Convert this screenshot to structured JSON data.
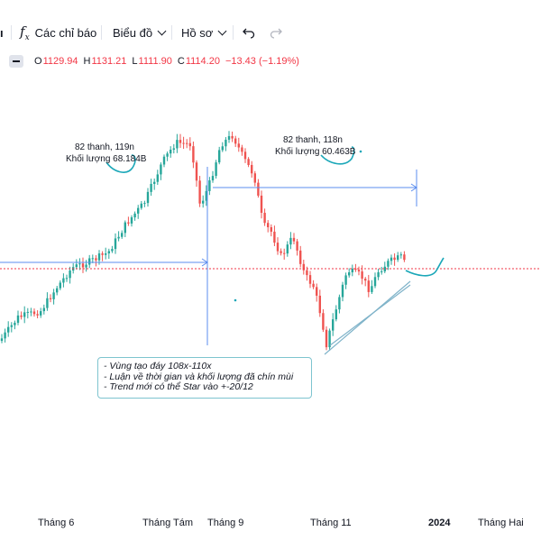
{
  "toolbar": {
    "fx_glyph": "f",
    "fx_sub": "x",
    "indicators_label": "Các chỉ báo",
    "chart_label": "Biểu đồ",
    "profile_label": "Hồ sơ",
    "edge_glyph": "ı"
  },
  "ohlc": {
    "open_key": "O",
    "open": "1129.94",
    "high_key": "H",
    "high": "1131.21",
    "low_key": "L",
    "low": "1111.90",
    "close_key": "C",
    "close": "1114.20",
    "change": "−13.43 (−1.19%)"
  },
  "annotations": {
    "left_line1": "82 thanh, 119n",
    "left_line2": "Khối lượng 68.184B",
    "right_line1": "82 thanh, 118n",
    "right_line2": "Khối lượng 60.463B"
  },
  "note": {
    "line1": "- Vùng tạo đáy 108x-110x",
    "line2": "- Luận về thời gian và khối lượng đã chín mùi",
    "line3": "- Trend mới có thể Star vào +-20/12"
  },
  "xaxis": {
    "labels": [
      "Tháng 6",
      "Tháng Tám",
      "Tháng 9",
      "Tháng 11",
      "2024",
      "Tháng Hai"
    ]
  },
  "colors": {
    "up": "#26a69a",
    "down": "#ef5350",
    "measure_line": "#5b8def",
    "drawing": "#1aa7b8",
    "price_line": "#f23645"
  }
}
